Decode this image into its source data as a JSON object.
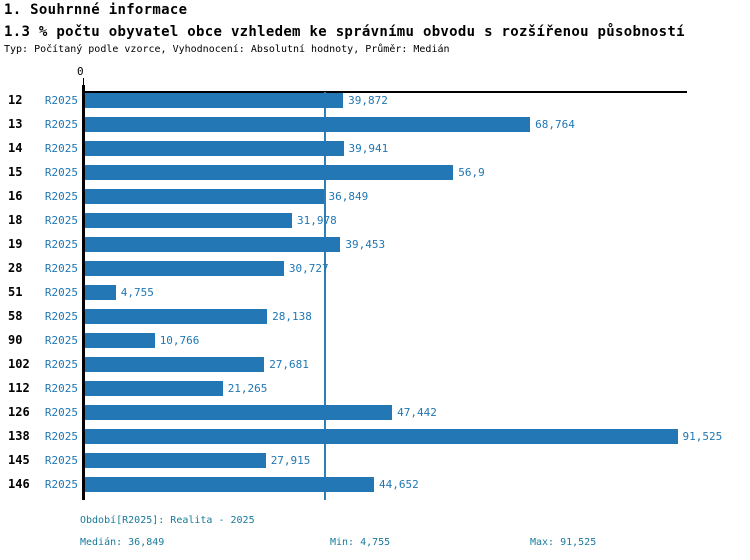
{
  "header": {
    "title": "1. Souhrnné informace",
    "subtitle": "1.3 % počtu obyvatel obce vzhledem ke správnímu obvodu s rozšířenou působností",
    "meta": "Typ: Počítaný podle vzorce, Vyhodnocení: Absolutní hodnoty, Průměr: Medián"
  },
  "chart_data": {
    "type": "bar",
    "orientation": "horizontal",
    "title": "1.3 % počtu obyvatel obce vzhledem ke správnímu obvodu s rozšířenou působností",
    "xlabel": "",
    "ylabel": "",
    "xlim": [
      0,
      93
    ],
    "x_axis_ticks": [
      "0"
    ],
    "origin_label": "0",
    "grid": "median-line-only",
    "legend_position": "none",
    "series_label": "R2025",
    "categories": [
      "12",
      "13",
      "14",
      "15",
      "16",
      "18",
      "19",
      "28",
      "51",
      "58",
      "90",
      "102",
      "112",
      "126",
      "138",
      "145",
      "146"
    ],
    "values": [
      39.872,
      68.764,
      39.941,
      56.9,
      36.849,
      31.978,
      39.453,
      30.727,
      4.755,
      28.138,
      10.766,
      27.681,
      21.265,
      47.442,
      91.525,
      27.915,
      44.652
    ],
    "value_labels": [
      "39,872",
      "68,764",
      "39,941",
      "56,9",
      "36,849",
      "31,978",
      "39,453",
      "30,727",
      "4,755",
      "28,138",
      "10,766",
      "27,681",
      "21,265",
      "47,442",
      "91,525",
      "27,915",
      "44,652"
    ],
    "median": 36.849,
    "colors": {
      "bar": "#2277b4",
      "value_label": "#1f77b4",
      "median_line": "#2e7fb5",
      "axis": "#000000",
      "footer_text": "#177a9c"
    }
  },
  "footer": {
    "period": "Období[R2025]: Realita - 2025",
    "median": "Medián: 36,849",
    "min": "Min: 4,755",
    "max": "Max: 91,525"
  }
}
